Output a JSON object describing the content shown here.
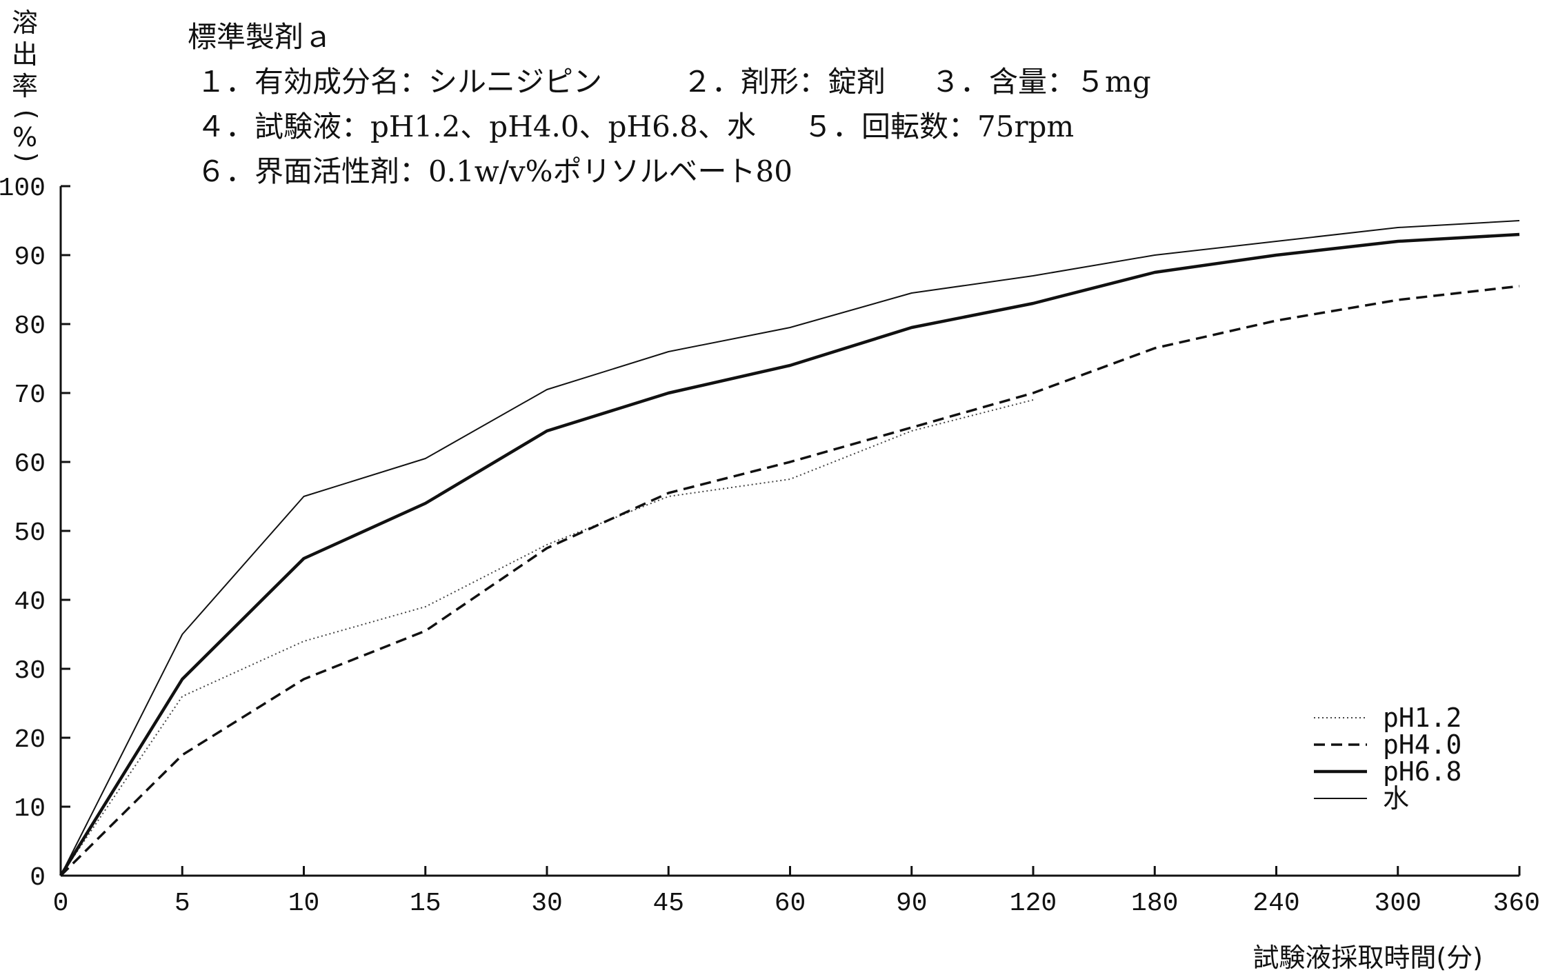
{
  "info": {
    "title": "標準製剤ａ",
    "line1a": "１．有効成分名：シルニジピン",
    "line1b": "２．剤形：錠剤",
    "line1c": "３．含量：５mg",
    "line2a": "４．試験液：pH1.2、pH4.0、pH6.8、水",
    "line2b": "５．回転数：75rpm",
    "line3": "６．界面活性剤：0.1w/v%ポリソルベート80"
  },
  "chart_data": {
    "type": "line",
    "ylabel_chars": [
      "溶",
      "出",
      "率",
      "(",
      "%",
      ")"
    ],
    "xlabel": "試験液採取時間(分)",
    "categories": [
      "0",
      "5",
      "10",
      "15",
      "30",
      "45",
      "60",
      "90",
      "120",
      "180",
      "240",
      "300",
      "360"
    ],
    "y_ticks": [
      "0",
      "10",
      "20",
      "30",
      "40",
      "50",
      "60",
      "70",
      "80",
      "90",
      "100"
    ],
    "ylim": [
      0,
      100
    ],
    "grid": false,
    "legend_position": "bottom-right",
    "series": [
      {
        "name": "pH1.2",
        "style": "dotted",
        "values": [
          0,
          26,
          34,
          39,
          48,
          55,
          57.5,
          64.5,
          69,
          null,
          null,
          null,
          null
        ]
      },
      {
        "name": "pH4.0",
        "style": "dashed",
        "values": [
          0,
          17.5,
          28.5,
          35.5,
          47.5,
          55.5,
          60,
          65,
          70,
          76.5,
          80.5,
          83.5,
          85.5
        ]
      },
      {
        "name": "pH6.8",
        "style": "solid-thick",
        "values": [
          0,
          28.5,
          46,
          54,
          64.5,
          70,
          74,
          79.5,
          83,
          87.5,
          90,
          92,
          93
        ]
      },
      {
        "name": "水",
        "style": "solid-thin",
        "values": [
          0,
          35,
          55,
          60.5,
          70.5,
          76,
          79.5,
          84.5,
          87,
          90,
          92,
          94,
          95
        ]
      }
    ]
  }
}
